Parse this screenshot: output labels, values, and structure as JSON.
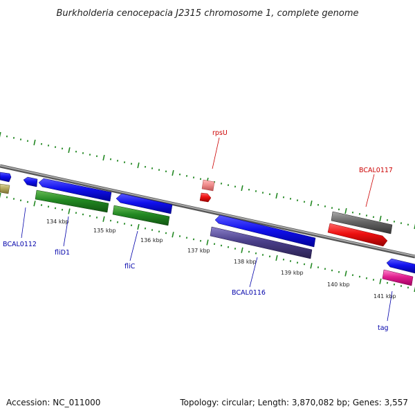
{
  "title": "Burkholderia cenocepacia J2315 chromosome 1, complete genome",
  "footer": {
    "accession": "Accession: NC_011000",
    "summary": "Topology: circular; Length: 3,870,082 bp; Genes: 3,557"
  },
  "scale_labels": [
    "134 kbp",
    "135 kbp",
    "136 kbp",
    "137 kbp",
    "138 kbp",
    "139 kbp",
    "140 kbp",
    "141 kbp"
  ],
  "gene_labels": [
    {
      "text": "rpsU",
      "color": "#cc0000"
    },
    {
      "text": "BCAL0117",
      "color": "#cc0000"
    },
    {
      "text": "BCAL0112",
      "color": "#0000aa"
    },
    {
      "text": "fliD1",
      "color": "#0000aa"
    },
    {
      "text": "fliC",
      "color": "#0000aa"
    },
    {
      "text": "BCAL0116",
      "color": "#0000aa"
    },
    {
      "text": "tag",
      "color": "#0000aa"
    }
  ],
  "colors": {
    "backbone": "#888888",
    "tick": "#228822",
    "cds": "#1111ee",
    "rrna_green": "#228822",
    "trna_red": "#ee1111",
    "trna_pink": "#ee8888",
    "misc_purple": "#4a3f8a",
    "misc_gray": "#666666",
    "misc_olive": "#b5aa60",
    "misc_magenta": "#e0208f"
  }
}
